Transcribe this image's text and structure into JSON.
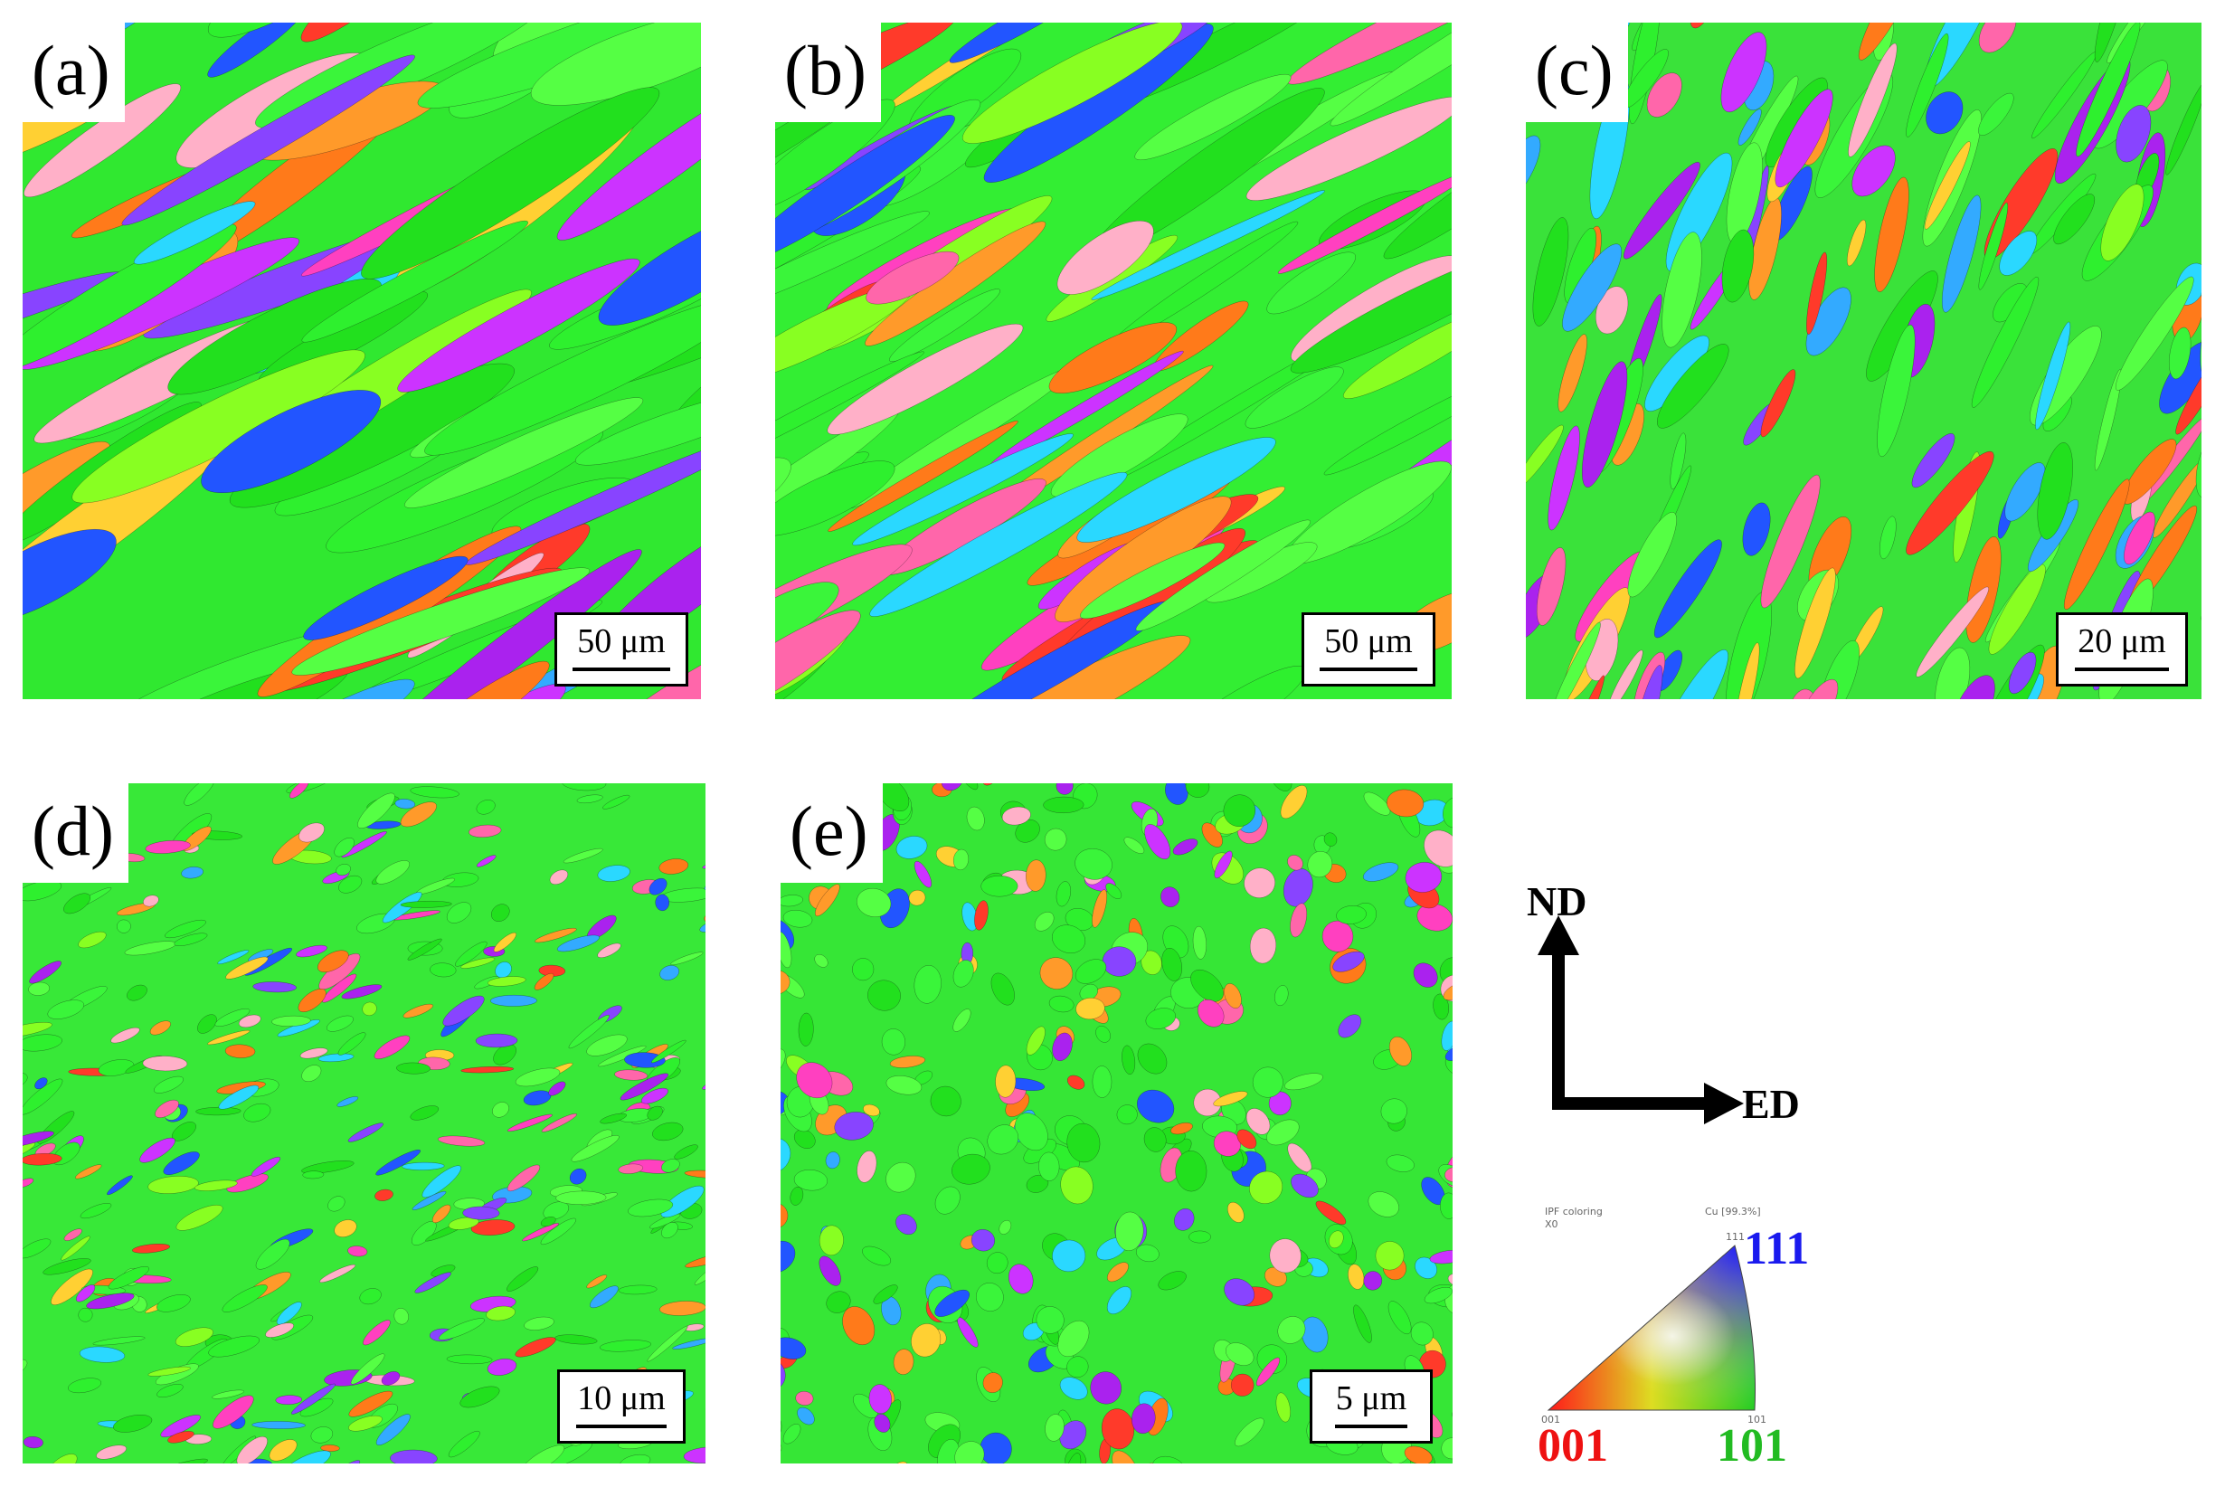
{
  "panels": [
    {
      "id": "a",
      "label": "(a)",
      "scale": "50 μm"
    },
    {
      "id": "b",
      "label": "(b)",
      "scale": "50 μm"
    },
    {
      "id": "c",
      "label": "(c)",
      "scale": "20 μm"
    },
    {
      "id": "d",
      "label": "(d)",
      "scale": "10 μm"
    },
    {
      "id": "e",
      "label": "(e)",
      "scale": "5 μm"
    }
  ],
  "axes": {
    "vertical": "ND",
    "horizontal": "ED"
  },
  "ipf_legend": {
    "header_left_1": "IPF coloring",
    "header_left_2": "X0",
    "header_right": "Cu [99.3%]",
    "corner_001_small": "001",
    "corner_101_small": "101",
    "corner_111_small": "111",
    "corner_001": "001",
    "corner_101": "101",
    "corner_111": "111",
    "colors": {
      "c001": "#ff1a1a",
      "c101": "#22cc22",
      "c111": "#1a1aff"
    }
  }
}
